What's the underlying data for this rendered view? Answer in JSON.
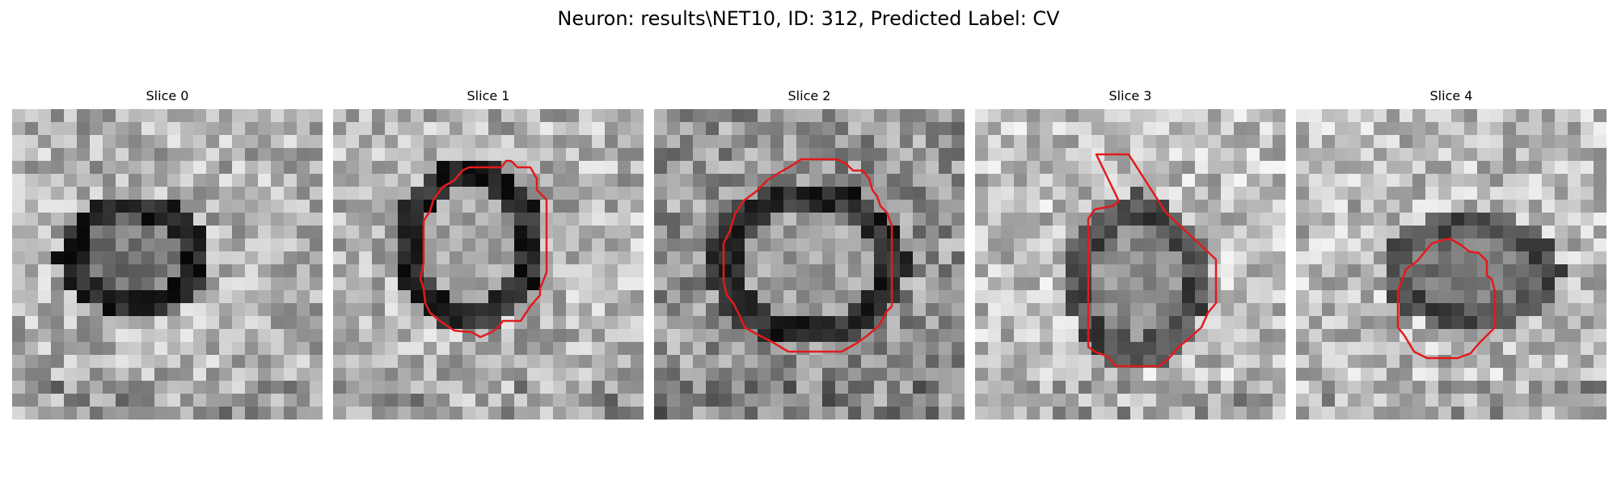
{
  "figure": {
    "title": "Neuron: results\\NET10, ID: 312, Predicted Label: CV",
    "contour_color": "#e31a1c"
  },
  "panels": [
    {
      "title": "Slice 0",
      "has_contour": false
    },
    {
      "title": "Slice 1",
      "has_contour": true
    },
    {
      "title": "Slice 2",
      "has_contour": true
    },
    {
      "title": "Slice 3",
      "has_contour": true
    },
    {
      "title": "Slice 4",
      "has_contour": true
    }
  ]
}
